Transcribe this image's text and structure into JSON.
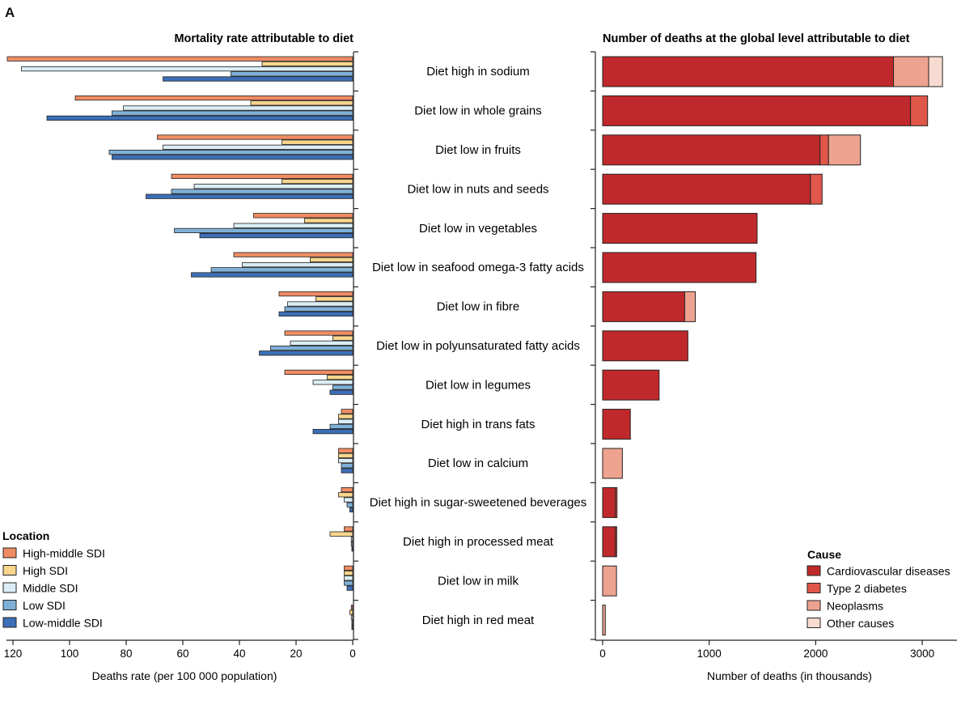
{
  "panel_letter": "A",
  "colors": {
    "High-middle SDI": "#f08c63",
    "High SDI": "#f9d68c",
    "Middle SDI": "#dbeef5",
    "Low SDI": "#7fb1d8",
    "Low-middle SDI": "#3d6fb8",
    "Cardiovascular diseases": "#c0292b",
    "Type 2 diabetes": "#e0574a",
    "Neoplasms": "#eda38f",
    "Other causes": "#f8dbd0"
  },
  "chart_data": [
    {
      "type": "bar",
      "orientation": "horizontal",
      "direction": "reversed",
      "title": "Mortality rate attributable to diet",
      "xlabel": "Deaths rate (per 100 000 population)",
      "xlim": [
        0,
        125
      ],
      "xticks": [
        "120",
        "100",
        "80",
        "60",
        "40",
        "20",
        "0"
      ],
      "tick_values": [
        120,
        100,
        80,
        60,
        40,
        20,
        0
      ],
      "legend_title": "Location",
      "legend_position": "bottom-left",
      "categories": [
        "Diet high in sodium",
        "Diet low in whole grains",
        "Diet low in fruits",
        "Diet low in nuts and seeds",
        "Diet low in vegetables",
        "Diet low in seafood omega-3 fatty acids",
        "Diet low in fibre",
        "Diet low in polyunsaturated fatty acids",
        "Diet low in legumes",
        "Diet high in trans fats",
        "Diet low in calcium",
        "Diet high in sugar-sweetened beverages",
        "Diet high in processed meat",
        "Diet low in milk",
        "Diet high in red meat"
      ],
      "series": [
        {
          "name": "High-middle SDI",
          "values": [
            122,
            98,
            69,
            64,
            35,
            42,
            26,
            24,
            24,
            4,
            5,
            4,
            3,
            3,
            0.5
          ]
        },
        {
          "name": "High SDI",
          "values": [
            32,
            36,
            25,
            25,
            17,
            15,
            13,
            7,
            9,
            5,
            5,
            5,
            8,
            3,
            1
          ]
        },
        {
          "name": "Middle SDI",
          "values": [
            117,
            81,
            67,
            56,
            42,
            39,
            23,
            22,
            14,
            5,
            5,
            3,
            0.5,
            3,
            0.5
          ]
        },
        {
          "name": "Low SDI",
          "values": [
            43,
            85,
            86,
            64,
            63,
            50,
            24,
            29,
            7,
            8,
            4,
            2,
            0.5,
            3,
            0.3
          ]
        },
        {
          "name": "Low-middle SDI",
          "values": [
            67,
            108,
            85,
            73,
            54,
            57,
            26,
            33,
            8,
            14,
            4,
            1,
            0.3,
            2,
            0.3
          ]
        }
      ]
    },
    {
      "type": "bar",
      "orientation": "horizontal",
      "stacked": true,
      "title": "Number of deaths at the global level attributable to diet",
      "xlabel": "Number of deaths (in thousands)",
      "xlim": [
        0,
        3250
      ],
      "xticks": [
        "0",
        "1000",
        "2000",
        "3000"
      ],
      "tick_values": [
        0,
        1000,
        2000,
        3000
      ],
      "legend_title": "Cause",
      "legend_position": "bottom-right",
      "series": [
        {
          "name": "Cardiovascular diseases",
          "values": [
            2730,
            2890,
            2040,
            1950,
            1450,
            1440,
            770,
            800,
            530,
            260,
            0,
            120,
            120,
            0,
            0
          ]
        },
        {
          "name": "Type 2 diabetes",
          "values": [
            0,
            160,
            80,
            110,
            0,
            0,
            0,
            0,
            0,
            0,
            0,
            15,
            12,
            0,
            0
          ]
        },
        {
          "name": "Neoplasms",
          "values": [
            330,
            0,
            300,
            0,
            0,
            0,
            100,
            0,
            0,
            0,
            185,
            0,
            0,
            130,
            25
          ]
        },
        {
          "name": "Other causes",
          "values": [
            130,
            0,
            0,
            0,
            0,
            0,
            0,
            0,
            0,
            0,
            0,
            0,
            0,
            0,
            0
          ]
        }
      ]
    }
  ]
}
